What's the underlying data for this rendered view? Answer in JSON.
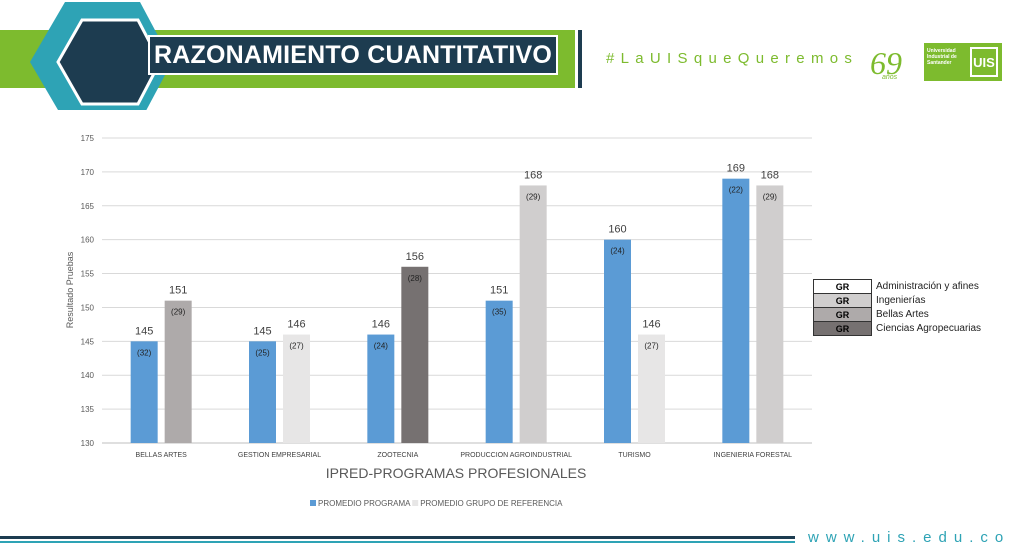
{
  "header": {
    "title": "RAZONAMIENTO CUANTITATIVO",
    "hashtag": "#LaUISqueQueremos",
    "anniversary_number": "69",
    "anniversary_word": "años",
    "university_name": "Universidad Industrial de Santander",
    "university_mark": "UIS",
    "colors": {
      "navy": "#1d3c50",
      "green": "#7dbb2e",
      "teal": "#2ea3b5"
    }
  },
  "footer": {
    "website": "www.uis.edu.co"
  },
  "chart_data": {
    "type": "bar",
    "xlabel": "IPRED-PROGRAMAS PROFESIONALES",
    "ylabel": "Resultado Pruebas",
    "ylim": [
      130,
      175
    ],
    "yticks": [
      130,
      135,
      140,
      145,
      150,
      155,
      160,
      165,
      170,
      175
    ],
    "grid": true,
    "categories": [
      "BELLAS ARTES",
      "GESTION EMPRESARIAL",
      "ZOOTECNIA",
      "PRODUCCION AGROINDUSTRIAL",
      "TURISMO",
      "INGENIERIA FORESTAL"
    ],
    "series": [
      {
        "name": "PROMEDIO PROGRAMA",
        "values": [
          145,
          145,
          146,
          151,
          160,
          169
        ],
        "counts": [
          "(32)",
          "(25)",
          "(24)",
          "(35)",
          "(24)",
          "(22)"
        ],
        "color": "#5b9bd5"
      },
      {
        "name": "PROMEDIO GRUPO DE REFERENCIA",
        "values": [
          151,
          146,
          156,
          168,
          146,
          168
        ],
        "counts": [
          "(29)",
          "(27)",
          "(28)",
          "(29)",
          "(27)",
          "(29)"
        ],
        "colors": [
          "#aeaaaa",
          "#e7e6e6",
          "#767171",
          "#d0cece",
          "#e7e6e6",
          "#d0cece"
        ],
        "legend_color": "#e7e6e6"
      }
    ],
    "legend_position": "bottom",
    "group_legend": [
      {
        "code": "GR",
        "label": "Administración y afines",
        "color": "#ffffff"
      },
      {
        "code": "GR",
        "label": "Ingenierías",
        "color": "#d0cece"
      },
      {
        "code": "GR",
        "label": "Bellas Artes",
        "color": "#aeaaaa"
      },
      {
        "code": "GR",
        "label": "Ciencias Agropecuarias",
        "color": "#767171"
      }
    ]
  }
}
